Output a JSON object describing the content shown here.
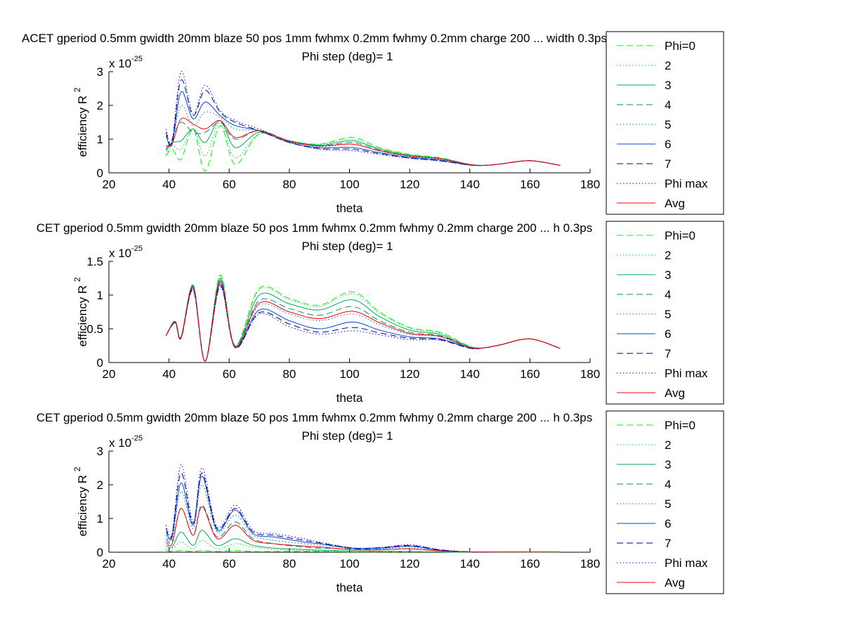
{
  "chart_data": [
    {
      "type": "line",
      "title": "ACET gperiod 0.5mm gwidth 20mm blaze 50 pos 1mm fwhmx 0.2mm fwhmy 0.2mm charge 200 ... width 0.3ps",
      "subtitle": "Phi step (deg)= 1",
      "xlabel": "theta",
      "ylabel_main": "efficiency R",
      "ylabel_sup": "2",
      "exp_base": "x 10",
      "exp_power": "-25",
      "xlim": [
        20,
        180
      ],
      "ylim": [
        0,
        3
      ],
      "xticks": [
        "20",
        "40",
        "60",
        "80",
        "100",
        "120",
        "140",
        "160",
        "180"
      ],
      "yticks": [
        "0",
        "1",
        "2",
        "3"
      ],
      "x": [
        39,
        41,
        44,
        48,
        52,
        57,
        62,
        70,
        80,
        90,
        101,
        110,
        120,
        130,
        140,
        145,
        150,
        160,
        170
      ],
      "series": [
        {
          "name": "Phi=0",
          "color": "#00ff00",
          "dash": "dash",
          "values": [
            0.5,
            0.7,
            0.4,
            1.3,
            0.05,
            1.4,
            0.25,
            1.15,
            0.95,
            0.85,
            1.05,
            0.75,
            0.55,
            0.45,
            0.25,
            0.22,
            0.26,
            0.36,
            0.22
          ]
        },
        {
          "name": "2",
          "color": "#00cc44",
          "dash": "dot",
          "values": [
            0.55,
            0.8,
            0.7,
            1.3,
            0.5,
            1.5,
            0.45,
            1.15,
            0.95,
            0.85,
            1.0,
            0.72,
            0.53,
            0.44,
            0.25,
            0.22,
            0.26,
            0.36,
            0.22
          ]
        },
        {
          "name": "3",
          "color": "#00aa55",
          "dash": "solid",
          "values": [
            0.65,
            0.9,
            0.95,
            1.3,
            0.9,
            1.55,
            0.75,
            1.2,
            0.95,
            0.82,
            0.95,
            0.7,
            0.52,
            0.43,
            0.25,
            0.22,
            0.26,
            0.36,
            0.22
          ]
        },
        {
          "name": "4",
          "color": "#008888",
          "dash": "dash",
          "values": [
            0.7,
            1.0,
            1.5,
            1.2,
            1.2,
            1.5,
            1.0,
            1.25,
            0.95,
            0.8,
            0.9,
            0.67,
            0.5,
            0.42,
            0.24,
            0.22,
            0.26,
            0.36,
            0.22
          ]
        },
        {
          "name": "5",
          "color": "#0077aa",
          "dash": "dot",
          "values": [
            0.8,
            0.9,
            2.0,
            1.4,
            1.8,
            1.65,
            1.3,
            1.25,
            0.95,
            0.78,
            0.85,
            0.65,
            0.48,
            0.4,
            0.24,
            0.22,
            0.26,
            0.36,
            0.22
          ]
        },
        {
          "name": "6",
          "color": "#0044cc",
          "dash": "solid",
          "values": [
            1.1,
            0.85,
            2.4,
            1.6,
            2.1,
            1.7,
            1.4,
            1.25,
            0.9,
            0.75,
            0.75,
            0.6,
            0.46,
            0.38,
            0.23,
            0.22,
            0.26,
            0.36,
            0.22
          ]
        },
        {
          "name": "7",
          "color": "#000088",
          "dash": "dash",
          "values": [
            1.2,
            0.9,
            2.75,
            1.7,
            2.45,
            1.8,
            1.5,
            1.25,
            0.9,
            0.72,
            0.7,
            0.57,
            0.44,
            0.36,
            0.23,
            0.22,
            0.26,
            0.36,
            0.22
          ]
        },
        {
          "name": "Phi max",
          "color": "#0000ff",
          "dash": "dot",
          "values": [
            1.3,
            0.95,
            3.0,
            1.75,
            2.6,
            1.85,
            1.55,
            1.3,
            0.92,
            0.7,
            0.65,
            0.55,
            0.43,
            0.35,
            0.23,
            0.22,
            0.26,
            0.36,
            0.22
          ]
        },
        {
          "name": "Avg",
          "color": "#ff0000",
          "dash": "solid",
          "values": [
            0.8,
            0.85,
            1.6,
            1.45,
            1.3,
            1.55,
            1.05,
            1.25,
            0.93,
            0.8,
            0.85,
            0.65,
            0.5,
            0.42,
            0.24,
            0.22,
            0.26,
            0.36,
            0.22
          ]
        }
      ]
    },
    {
      "type": "line",
      "title": "CET gperiod 0.5mm gwidth 20mm blaze 50 pos 1mm fwhmx 0.2mm fwhmy 0.2mm charge 200 ... h 0.3ps",
      "subtitle": "Phi step (deg)= 1",
      "xlabel": "theta",
      "ylabel_main": "efficiency R",
      "ylabel_sup": "2",
      "exp_base": "x 10",
      "exp_power": "-25",
      "xlim": [
        20,
        180
      ],
      "ylim": [
        0,
        1.5
      ],
      "xticks": [
        "20",
        "40",
        "60",
        "80",
        "100",
        "120",
        "140",
        "160",
        "180"
      ],
      "yticks": [
        "0",
        "0.5",
        "1",
        "1.5"
      ],
      "x": [
        39,
        42,
        44,
        48,
        52,
        57,
        62,
        70,
        80,
        90,
        101,
        110,
        120,
        130,
        140,
        145,
        150,
        160,
        170
      ],
      "series": [
        {
          "name": "Phi=0",
          "color": "#00ff00",
          "dash": "dash",
          "values": [
            0.4,
            0.62,
            0.38,
            1.15,
            0.02,
            1.3,
            0.25,
            1.1,
            0.95,
            0.85,
            1.05,
            0.75,
            0.52,
            0.45,
            0.24,
            0.22,
            0.26,
            0.35,
            0.21
          ]
        },
        {
          "name": "2",
          "color": "#00cc44",
          "dash": "dot",
          "values": [
            0.4,
            0.62,
            0.38,
            1.15,
            0.02,
            1.28,
            0.25,
            1.08,
            0.93,
            0.83,
            1.02,
            0.73,
            0.51,
            0.44,
            0.24,
            0.22,
            0.26,
            0.35,
            0.21
          ]
        },
        {
          "name": "3",
          "color": "#00aa55",
          "dash": "solid",
          "values": [
            0.4,
            0.61,
            0.38,
            1.14,
            0.02,
            1.25,
            0.24,
            1.0,
            0.87,
            0.78,
            0.93,
            0.68,
            0.48,
            0.42,
            0.23,
            0.22,
            0.26,
            0.35,
            0.21
          ]
        },
        {
          "name": "4",
          "color": "#008888",
          "dash": "dash",
          "values": [
            0.4,
            0.61,
            0.37,
            1.13,
            0.02,
            1.22,
            0.24,
            0.92,
            0.8,
            0.7,
            0.83,
            0.62,
            0.45,
            0.4,
            0.23,
            0.22,
            0.26,
            0.35,
            0.21
          ]
        },
        {
          "name": "5",
          "color": "#0077aa",
          "dash": "dot",
          "values": [
            0.4,
            0.6,
            0.37,
            1.12,
            0.02,
            1.2,
            0.23,
            0.85,
            0.72,
            0.62,
            0.72,
            0.56,
            0.42,
            0.38,
            0.22,
            0.22,
            0.26,
            0.35,
            0.21
          ]
        },
        {
          "name": "6",
          "color": "#0044cc",
          "dash": "solid",
          "values": [
            0.4,
            0.6,
            0.37,
            1.1,
            0.02,
            1.17,
            0.23,
            0.78,
            0.62,
            0.5,
            0.6,
            0.48,
            0.38,
            0.35,
            0.22,
            0.22,
            0.26,
            0.35,
            0.21
          ]
        },
        {
          "name": "7",
          "color": "#000088",
          "dash": "dash",
          "values": [
            0.4,
            0.59,
            0.36,
            1.08,
            0.02,
            1.14,
            0.22,
            0.74,
            0.57,
            0.45,
            0.52,
            0.44,
            0.36,
            0.34,
            0.21,
            0.22,
            0.26,
            0.35,
            0.21
          ]
        },
        {
          "name": "Phi max",
          "color": "#0000ff",
          "dash": "dot",
          "values": [
            0.4,
            0.59,
            0.36,
            1.07,
            0.02,
            1.12,
            0.22,
            0.72,
            0.53,
            0.42,
            0.47,
            0.41,
            0.34,
            0.33,
            0.21,
            0.22,
            0.26,
            0.35,
            0.21
          ]
        },
        {
          "name": "Avg",
          "color": "#ff0000",
          "dash": "solid",
          "values": [
            0.4,
            0.6,
            0.37,
            1.12,
            0.02,
            1.2,
            0.23,
            0.88,
            0.75,
            0.65,
            0.76,
            0.59,
            0.43,
            0.39,
            0.22,
            0.22,
            0.26,
            0.35,
            0.21
          ]
        }
      ]
    },
    {
      "type": "line",
      "title": "CET gperiod 0.5mm gwidth 20mm blaze 50 pos 1mm fwhmx 0.2mm fwhmy 0.2mm charge 200 ... h 0.3ps",
      "subtitle": "Phi step (deg)= 1",
      "xlabel": "theta",
      "ylabel_main": "efficiency R",
      "ylabel_sup": "2",
      "exp_base": "x 10",
      "exp_power": "-25",
      "xlim": [
        20,
        180
      ],
      "ylim": [
        0,
        3
      ],
      "xticks": [
        "20",
        "40",
        "60",
        "80",
        "100",
        "120",
        "140",
        "160",
        "180"
      ],
      "yticks": [
        "0",
        "1",
        "2",
        "3"
      ],
      "x": [
        39,
        41,
        44,
        48,
        51,
        56,
        62,
        68,
        75,
        85,
        90,
        101,
        110,
        120,
        130,
        140,
        150,
        160,
        170
      ],
      "series": [
        {
          "name": "Phi=0",
          "color": "#00ff00",
          "dash": "dash",
          "values": [
            0.05,
            0.02,
            0.05,
            0.02,
            0.05,
            0.02,
            0.05,
            0.02,
            0.02,
            0.02,
            0.02,
            0.01,
            0.01,
            0.01,
            0.01,
            0.0,
            0.0,
            0.0,
            0.0
          ]
        },
        {
          "name": "2",
          "color": "#00cc44",
          "dash": "dot",
          "values": [
            0.1,
            0.1,
            0.3,
            0.1,
            0.35,
            0.1,
            0.25,
            0.15,
            0.08,
            0.05,
            0.04,
            0.03,
            0.02,
            0.02,
            0.01,
            0.0,
            0.0,
            0.0,
            0.0
          ]
        },
        {
          "name": "3",
          "color": "#00aa55",
          "dash": "solid",
          "values": [
            0.2,
            0.15,
            0.6,
            0.2,
            0.65,
            0.2,
            0.4,
            0.2,
            0.12,
            0.08,
            0.06,
            0.04,
            0.03,
            0.02,
            0.01,
            0.0,
            0.0,
            0.0,
            0.0
          ]
        },
        {
          "name": "4",
          "color": "#008888",
          "dash": "dash",
          "values": [
            0.4,
            0.3,
            1.3,
            0.5,
            1.4,
            0.45,
            0.9,
            0.4,
            0.25,
            0.15,
            0.12,
            0.1,
            0.08,
            0.1,
            0.04,
            0.01,
            0.01,
            0.01,
            0.01
          ]
        },
        {
          "name": "5",
          "color": "#0077aa",
          "dash": "dot",
          "values": [
            0.5,
            0.4,
            1.8,
            0.7,
            2.0,
            0.6,
            1.1,
            0.5,
            0.35,
            0.25,
            0.2,
            0.12,
            0.1,
            0.15,
            0.05,
            0.01,
            0.01,
            0.01,
            0.01
          ]
        },
        {
          "name": "6",
          "color": "#0044cc",
          "dash": "solid",
          "values": [
            0.6,
            0.45,
            2.05,
            0.8,
            2.25,
            0.65,
            1.25,
            0.55,
            0.45,
            0.3,
            0.25,
            0.12,
            0.12,
            0.18,
            0.06,
            0.01,
            0.01,
            0.01,
            0.01
          ]
        },
        {
          "name": "7",
          "color": "#000088",
          "dash": "dash",
          "values": [
            0.7,
            0.5,
            2.35,
            0.85,
            2.35,
            0.7,
            1.3,
            0.6,
            0.5,
            0.35,
            0.28,
            0.12,
            0.13,
            0.2,
            0.07,
            0.01,
            0.01,
            0.01,
            0.01
          ]
        },
        {
          "name": "Phi max",
          "color": "#0000ff",
          "dash": "dot",
          "values": [
            0.8,
            0.55,
            2.6,
            0.9,
            2.5,
            0.75,
            1.4,
            0.65,
            0.55,
            0.4,
            0.3,
            0.13,
            0.14,
            0.22,
            0.08,
            0.01,
            0.01,
            0.01,
            0.01
          ]
        },
        {
          "name": "Avg",
          "color": "#ff0000",
          "dash": "solid",
          "values": [
            0.3,
            0.25,
            1.3,
            0.5,
            1.35,
            0.4,
            0.8,
            0.35,
            0.25,
            0.18,
            0.15,
            0.08,
            0.07,
            0.1,
            0.04,
            0.01,
            0.01,
            0.01,
            0.01
          ]
        }
      ]
    }
  ]
}
